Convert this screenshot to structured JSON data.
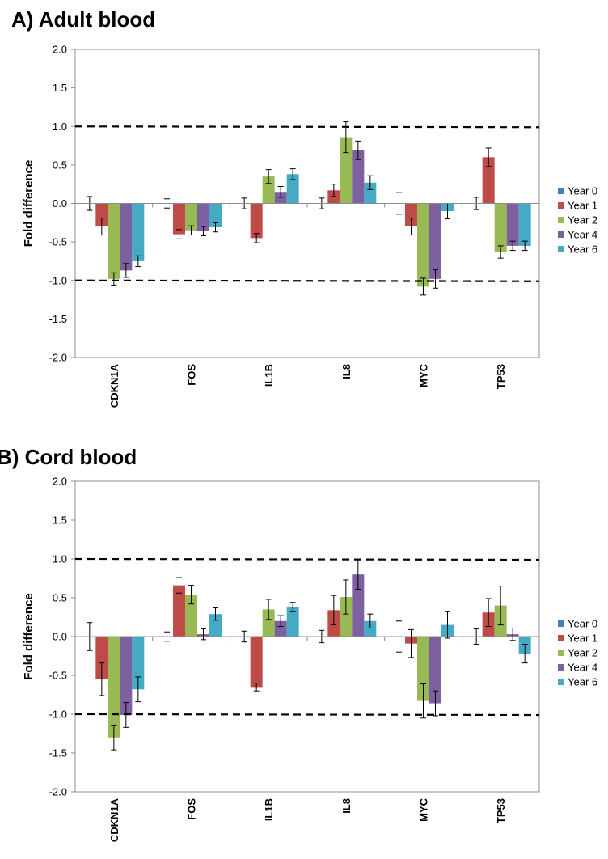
{
  "colors": {
    "Year 0": "#4a7ebb",
    "Year 1": "#be4b48",
    "Year 2": "#98b954",
    "Year 4": "#7d60a0",
    "Year 6": "#46aac5"
  },
  "chart_data": [
    {
      "type": "bar",
      "title": "A) Adult blood",
      "ylabel": "Fold difference",
      "ylim": [
        -2.0,
        2.0
      ],
      "yticks": [
        "2.0",
        "1.5",
        "1.0",
        "0.5",
        "0.0",
        "-0.5",
        "-1.0",
        "-1.5",
        "-2.0"
      ],
      "categories": [
        "CDKN1A",
        "FOS",
        "IL1B",
        "IL8",
        "MYC",
        "TP53"
      ],
      "reference_lines": [
        1.0,
        -1.0
      ],
      "legend_position": "right",
      "series": [
        {
          "name": "Year 0",
          "values": [
            0.0,
            0.0,
            0.0,
            0.0,
            0.0,
            0.0
          ],
          "errors": [
            0.09,
            0.06,
            0.07,
            0.07,
            0.14,
            0.08
          ]
        },
        {
          "name": "Year 1",
          "values": [
            -0.3,
            -0.4,
            -0.45,
            0.17,
            -0.3,
            0.6
          ],
          "errors": [
            0.11,
            0.06,
            0.06,
            0.08,
            0.11,
            0.12
          ]
        },
        {
          "name": "Year 2",
          "values": [
            -0.98,
            -0.35,
            0.35,
            0.86,
            -1.08,
            -0.63
          ],
          "errors": [
            0.08,
            0.06,
            0.09,
            0.2,
            0.11,
            0.08
          ]
        },
        {
          "name": "Year 4",
          "values": [
            -0.87,
            -0.36,
            0.15,
            0.69,
            -0.98,
            -0.55
          ],
          "errors": [
            0.09,
            0.06,
            0.07,
            0.12,
            0.12,
            0.06
          ]
        },
        {
          "name": "Year 6",
          "values": [
            -0.75,
            -0.31,
            0.38,
            0.27,
            -0.1,
            -0.55
          ],
          "errors": [
            0.07,
            0.06,
            0.07,
            0.09,
            0.1,
            0.06
          ]
        }
      ]
    },
    {
      "type": "bar",
      "title": "B) Cord blood",
      "ylabel": "Fold difference",
      "ylim": [
        -2.0,
        2.0
      ],
      "yticks": [
        "2.0",
        "1.5",
        "1.0",
        "0.5",
        "0.0",
        "-0.5",
        "-1.0",
        "-1.5",
        "-2.0"
      ],
      "categories": [
        "CDKN1A",
        "FOS",
        "IL1B",
        "IL8",
        "MYC",
        "TP53"
      ],
      "reference_lines": [
        1.0,
        -1.0
      ],
      "legend_position": "right",
      "series": [
        {
          "name": "Year 0",
          "values": [
            0.0,
            0.0,
            0.0,
            0.0,
            0.0,
            0.0
          ],
          "errors": [
            0.18,
            0.06,
            0.07,
            0.08,
            0.2,
            0.1
          ]
        },
        {
          "name": "Year 1",
          "values": [
            -0.55,
            0.66,
            -0.65,
            0.34,
            -0.09,
            0.31
          ],
          "errors": [
            0.21,
            0.1,
            0.05,
            0.19,
            0.18,
            0.18
          ]
        },
        {
          "name": "Year 2",
          "values": [
            -1.3,
            0.54,
            0.35,
            0.51,
            -0.83,
            0.4
          ],
          "errors": [
            0.16,
            0.12,
            0.13,
            0.22,
            0.22,
            0.25
          ]
        },
        {
          "name": "Year 4",
          "values": [
            -1.01,
            0.03,
            0.2,
            0.8,
            -0.86,
            0.03
          ],
          "errors": [
            0.16,
            0.07,
            0.07,
            0.19,
            0.16,
            0.08
          ]
        },
        {
          "name": "Year 6",
          "values": [
            -0.68,
            0.29,
            0.38,
            0.2,
            0.15,
            -0.22
          ],
          "errors": [
            0.16,
            0.08,
            0.06,
            0.09,
            0.17,
            0.12
          ]
        }
      ]
    }
  ]
}
